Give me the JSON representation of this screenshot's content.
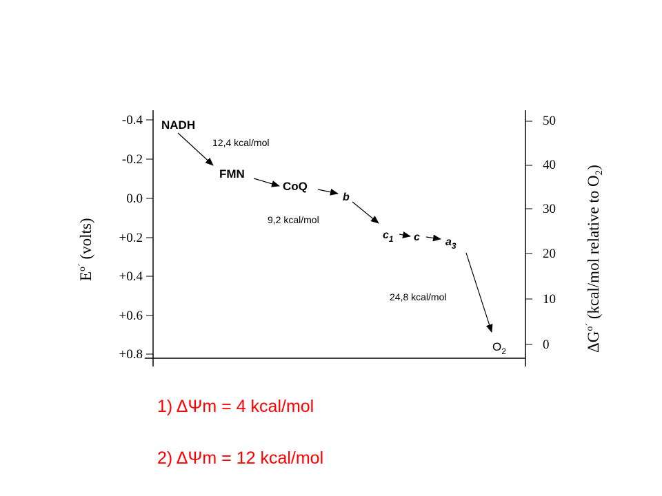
{
  "diagram": {
    "left_axis": {
      "label_main": "E",
      "label_sup": "o´",
      "label_rest": " (volts)",
      "ticks": [
        "-0.4",
        "-0.2",
        "0.0",
        "+0.2",
        "+0.4",
        "+0.6",
        "+0.8"
      ]
    },
    "right_axis": {
      "label_main": "ΔG",
      "label_sup": "o´",
      "label_rest": " (kcal/mol relative to O",
      "label_sub": "2",
      "label_close": ")",
      "ticks": [
        "50",
        "40",
        "30",
        "20",
        "10",
        "0"
      ]
    },
    "carriers": {
      "nadh": "NADH",
      "fmn": "FMN",
      "coq": "CoQ",
      "b": "b",
      "c1_main": "c",
      "c1_sub": "1",
      "c": "c",
      "a3_main": "a",
      "a3_sub": "3",
      "o2_main": "O",
      "o2_sub": "2"
    },
    "energies": {
      "first": "12,4 kcal/mol",
      "second": "9,2 kcal/mol",
      "third": "24,8 kcal/mol"
    }
  },
  "notes": {
    "one": "1) ΔΨm = 4 kcal/mol",
    "two": "2) ΔΨm = 12 kcal/mol"
  },
  "colors": {
    "notes": "#ff0000",
    "lines": "#000000"
  }
}
